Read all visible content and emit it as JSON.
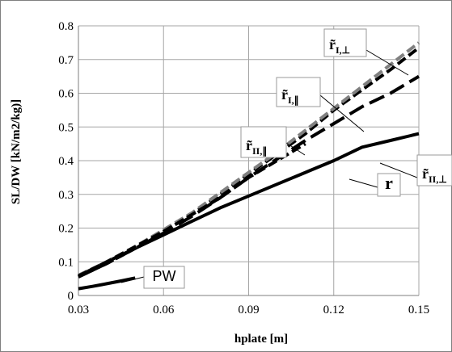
{
  "chart_data": {
    "type": "line",
    "xlabel": "hplate [m]",
    "ylabel": "SL/DW [kN/m2/kg)]",
    "xlim": [
      0.03,
      0.15
    ],
    "ylim": [
      0,
      0.8
    ],
    "x_ticks": [
      "0.03",
      "0.06",
      "0.09",
      "0.12",
      "0.15"
    ],
    "y_ticks": [
      "0",
      "0.1",
      "0.2",
      "0.3",
      "0.4",
      "0.5",
      "0.6",
      "0.7",
      "0.8"
    ],
    "grid": true,
    "series": [
      {
        "name": "r",
        "style": "solid",
        "color": "#000000",
        "x": [
          0.03,
          0.04,
          0.05,
          0.06,
          0.07,
          0.08,
          0.09,
          0.1,
          0.11,
          0.12,
          0.13,
          0.14,
          0.15
        ],
        "y": [
          0.058,
          0.1,
          0.14,
          0.18,
          0.22,
          0.26,
          0.295,
          0.33,
          0.365,
          0.4,
          0.44,
          0.46,
          0.48
        ]
      },
      {
        "name": "r̃I,⊥",
        "style": "dashed",
        "color": "#000000",
        "x": [
          0.03,
          0.04,
          0.05,
          0.06,
          0.07,
          0.08,
          0.09,
          0.1,
          0.11,
          0.12,
          0.13,
          0.14,
          0.15
        ],
        "y": [
          0.055,
          0.095,
          0.14,
          0.19,
          0.24,
          0.3,
          0.36,
          0.42,
          0.48,
          0.55,
          0.61,
          0.67,
          0.735
        ]
      },
      {
        "name": "r̃I,∥",
        "style": "dashed",
        "color": "#808080",
        "x": [
          0.03,
          0.04,
          0.05,
          0.06,
          0.07,
          0.08,
          0.09,
          0.1,
          0.11,
          0.12,
          0.13,
          0.14,
          0.15
        ],
        "y": [
          0.06,
          0.1,
          0.145,
          0.195,
          0.245,
          0.305,
          0.365,
          0.425,
          0.49,
          0.555,
          0.62,
          0.685,
          0.75
        ]
      },
      {
        "name": "r̃II,⊥",
        "style": "long-dash",
        "color": "#000000",
        "x": [
          0.03,
          0.04,
          0.05,
          0.06,
          0.07,
          0.08,
          0.09,
          0.1,
          0.11,
          0.12,
          0.13,
          0.14,
          0.15
        ],
        "y": [
          0.055,
          0.095,
          0.14,
          0.185,
          0.235,
          0.29,
          0.35,
          0.405,
          0.46,
          0.51,
          0.56,
          0.6,
          0.65
        ]
      },
      {
        "name": "r̃II,∥",
        "style": "dashed",
        "color": "#000000",
        "x": [
          0.03,
          0.04,
          0.05,
          0.06,
          0.07,
          0.08,
          0.09,
          0.1,
          0.11
        ],
        "y": [
          0.058,
          0.1,
          0.145,
          0.19,
          0.24,
          0.29,
          0.35,
          0.4,
          0.45
        ]
      },
      {
        "name": "PW",
        "style": "solid",
        "color": "#000000",
        "x": [
          0.03,
          0.035,
          0.04,
          0.045,
          0.05
        ],
        "y": [
          0.02,
          0.027,
          0.035,
          0.043,
          0.052
        ]
      }
    ],
    "annotations": [
      {
        "main": "r̃",
        "sub": "I,⊥"
      },
      {
        "main": "r̃",
        "sub": "I,∥"
      },
      {
        "main": "r̃",
        "sub": "II,⊥"
      },
      {
        "main": "r̃",
        "sub": "II,∥"
      },
      {
        "main": "r",
        "sub": ""
      },
      {
        "main": "PW",
        "sub": ""
      }
    ]
  }
}
